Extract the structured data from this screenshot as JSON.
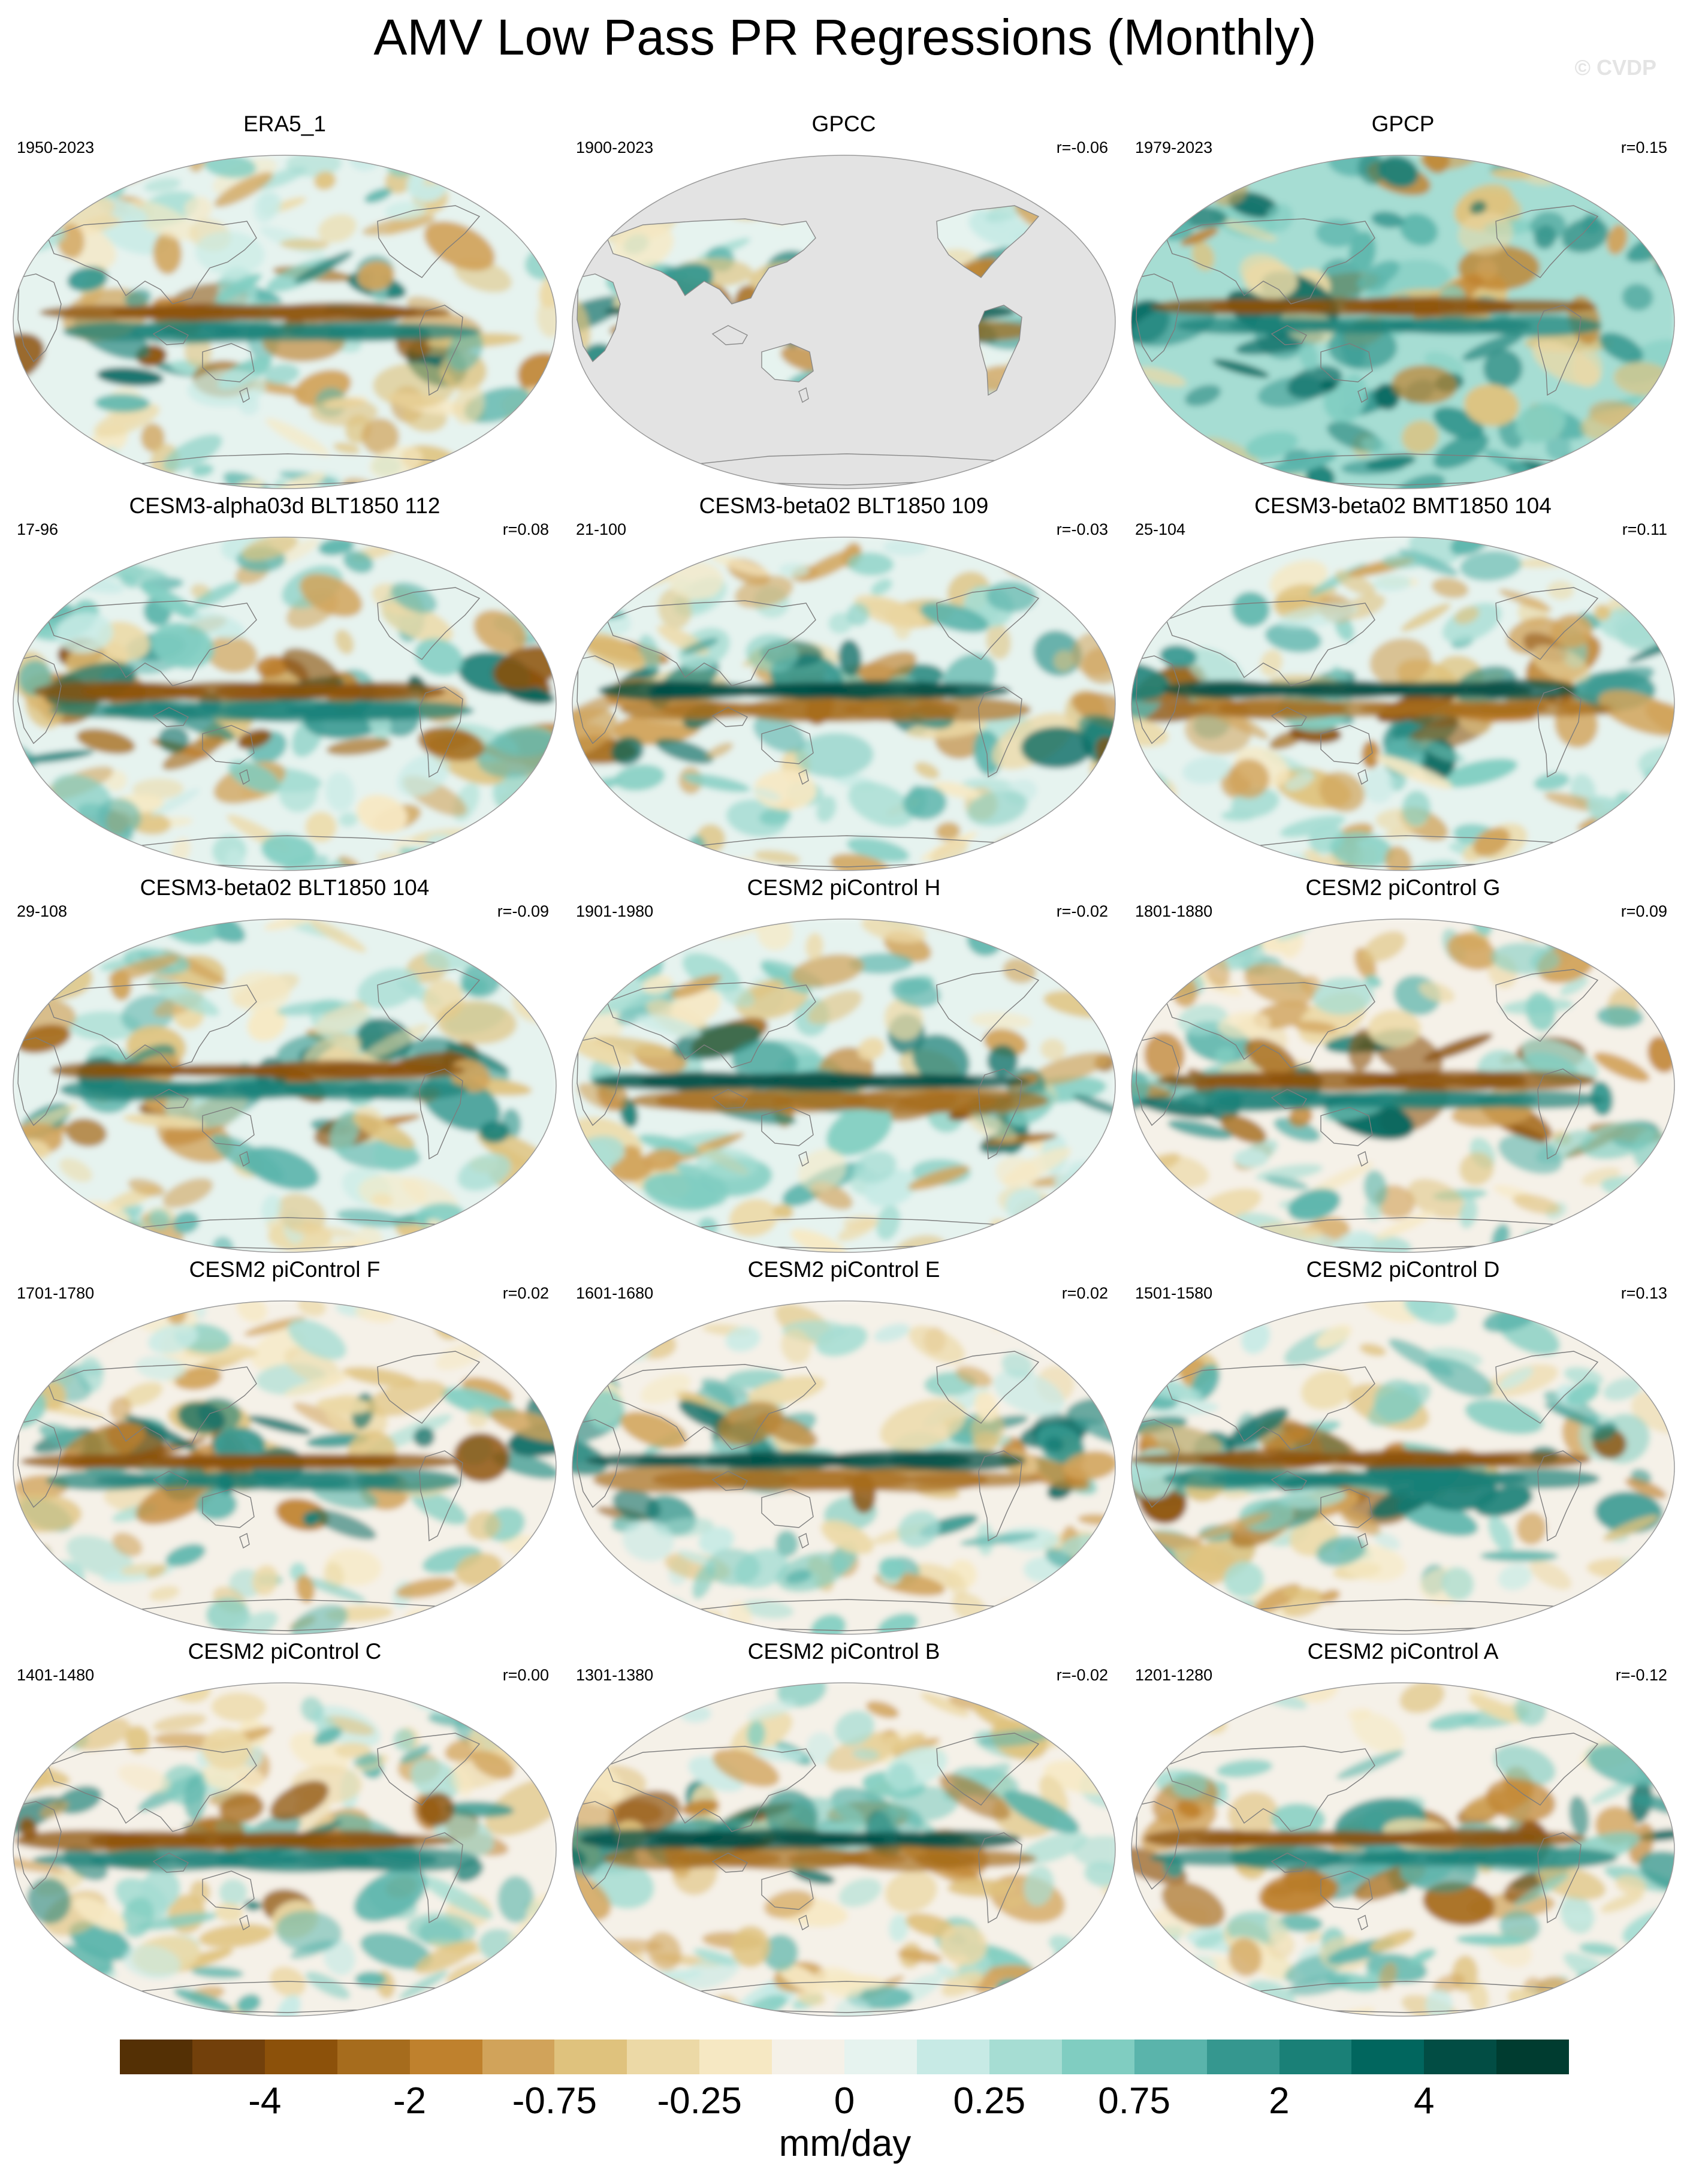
{
  "title": "AMV Low Pass PR Regressions (Monthly)",
  "watermark": "© CVDP",
  "panels": [
    {
      "title": "ERA5_1",
      "years": "1950-2023",
      "corr": "",
      "pattern": "obs"
    },
    {
      "title": "GPCC",
      "years": "1900-2023",
      "corr": "r=-0.06",
      "pattern": "land-only"
    },
    {
      "title": "GPCP",
      "years": "1979-2023",
      "corr": "r=0.15",
      "pattern": "wet"
    },
    {
      "title": "CESM3-alpha03d BLT1850 112",
      "years": "17-96",
      "corr": "r=0.08",
      "pattern": "model"
    },
    {
      "title": "CESM3-beta02 BLT1850 109",
      "years": "21-100",
      "corr": "r=-0.03",
      "pattern": "model"
    },
    {
      "title": "CESM3-beta02 BMT1850 104",
      "years": "25-104",
      "corr": "r=0.11",
      "pattern": "model"
    },
    {
      "title": "CESM3-beta02 BLT1850 104",
      "years": "29-108",
      "corr": "r=-0.09",
      "pattern": "model"
    },
    {
      "title": "CESM2 piControl H",
      "years": "1901-1980",
      "corr": "r=-0.02",
      "pattern": "model"
    },
    {
      "title": "CESM2 piControl G",
      "years": "1801-1880",
      "corr": "r=0.09",
      "pattern": "model"
    },
    {
      "title": "CESM2 piControl F",
      "years": "1701-1780",
      "corr": "r=0.02",
      "pattern": "model"
    },
    {
      "title": "CESM2 piControl E",
      "years": "1601-1680",
      "corr": "r=0.02",
      "pattern": "model"
    },
    {
      "title": "CESM2 piControl D",
      "years": "1501-1580",
      "corr": "r=0.13",
      "pattern": "model"
    },
    {
      "title": "CESM2 piControl C",
      "years": "1401-1480",
      "corr": "r=0.00",
      "pattern": "model"
    },
    {
      "title": "CESM2 piControl B",
      "years": "1301-1380",
      "corr": "r=-0.02",
      "pattern": "model"
    },
    {
      "title": "CESM2 piControl A",
      "years": "1201-1280",
      "corr": "r=-0.12",
      "pattern": "model"
    }
  ],
  "colorbar": {
    "colors": [
      "#543005",
      "#72400b",
      "#8c510a",
      "#a66c1d",
      "#bf812d",
      "#d1a35a",
      "#dfc27d",
      "#ecd9a6",
      "#f6e8c3",
      "#f5f1e8",
      "#e6f3ef",
      "#c7eae5",
      "#a6ddd3",
      "#80cdc1",
      "#5ab4ab",
      "#35978f",
      "#1a8077",
      "#01665e",
      "#024d44",
      "#003c30"
    ],
    "ticks": [
      {
        "label": "-4",
        "boundary": 2
      },
      {
        "label": "-2",
        "boundary": 4
      },
      {
        "label": "-0.75",
        "boundary": 6
      },
      {
        "label": "-0.25",
        "boundary": 8
      },
      {
        "label": "0",
        "boundary": 10
      },
      {
        "label": "0.25",
        "boundary": 12
      },
      {
        "label": "0.75",
        "boundary": 14
      },
      {
        "label": "2",
        "boundary": 16
      },
      {
        "label": "4",
        "boundary": 18
      }
    ],
    "units": "mm/day"
  }
}
